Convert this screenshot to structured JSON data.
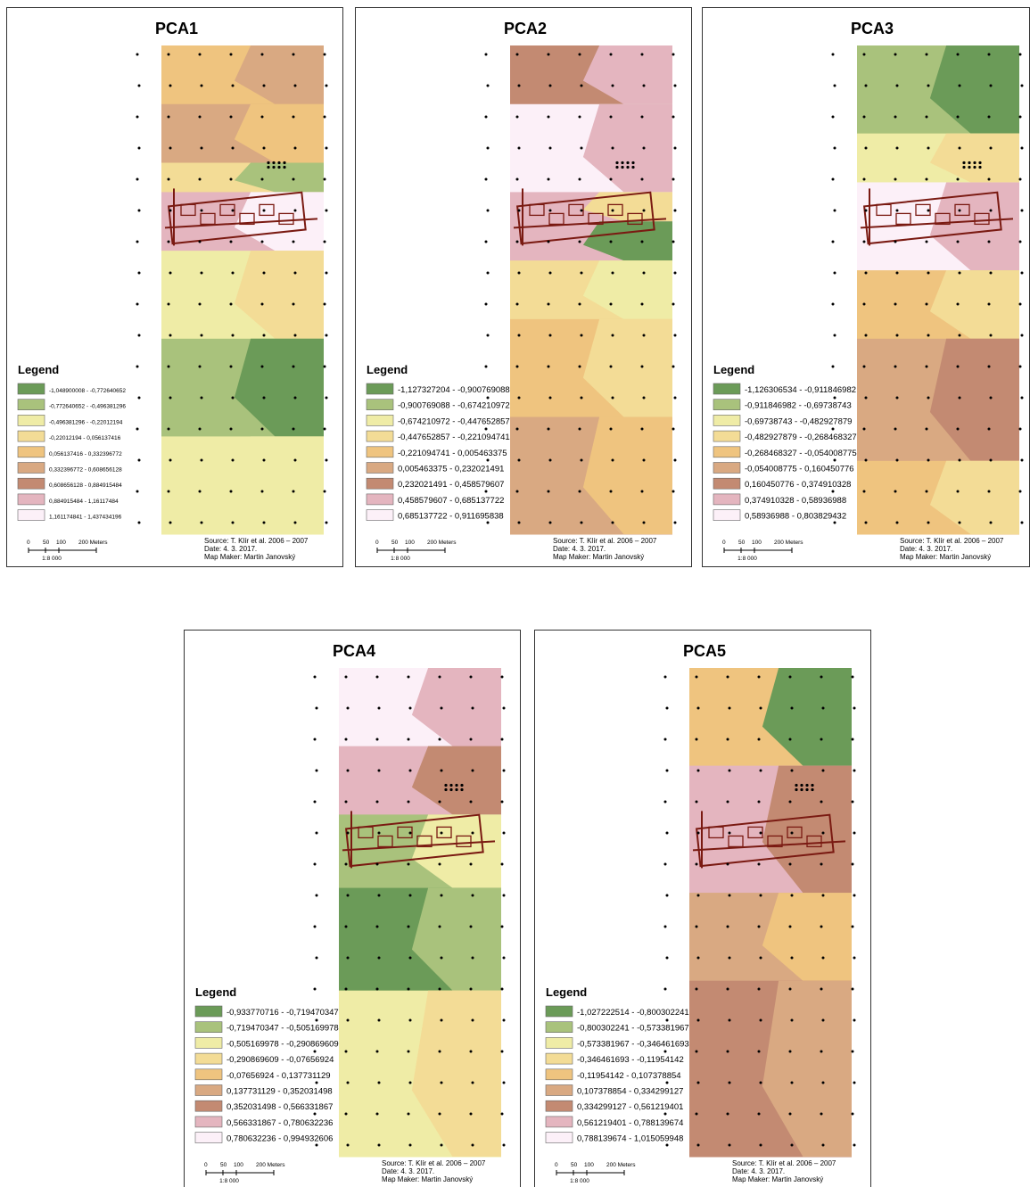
{
  "colors": [
    "#6b9b58",
    "#a9c27c",
    "#efeca6",
    "#f3dc96",
    "#efc47f",
    "#d9a982",
    "#c38a72",
    "#e4b5bf",
    "#fcf0f8"
  ],
  "panels": [
    {
      "title": "PCA1",
      "legend_title": "Legend",
      "legend": [
        "-1,048900008 - -0,772640652",
        "-0,772640652 - -0,496381296",
        "-0,496381296 - -0,22012194",
        "-0,22012194 - 0,056137416",
        "0,056137416 - 0,332396772",
        "0,332396772 - 0,608656128",
        "0,608656128 - 0,884915484",
        "0,884915484 - 1,16117484",
        "1,161174841 - 1,437434196"
      ],
      "scale": {
        "labels": [
          "0",
          "50",
          "100",
          "200 Meters"
        ],
        "ratio": "1:8 000"
      },
      "source": "Source: T. Klír et al. 2006 – 2007",
      "date": "Date: 4. 3. 2017.",
      "map_maker": "Map Maker: Martin Janovský"
    },
    {
      "title": "PCA2",
      "legend_title": "Legend",
      "legend": [
        "-1,127327204 - -0,900769088",
        "-0,900769088 - -0,674210972",
        "-0,674210972 - -0,447652857",
        "-0,447652857 - -0,221094741",
        "-0,221094741 - 0,005463375",
        "0,005463375 - 0,232021491",
        "0,232021491 - 0,458579607",
        "0,458579607 - 0,685137722",
        "0,685137722 - 0,911695838"
      ],
      "scale": {
        "labels": [
          "0",
          "50",
          "100",
          "200 Meters"
        ],
        "ratio": "1:8 000"
      },
      "source": "Source: T. Klír et al. 2006 – 2007",
      "date": "Date: 4. 3. 2017.",
      "map_maker": "Map Maker: Martin Janovský"
    },
    {
      "title": "PCA3",
      "legend_title": "Legend",
      "legend": [
        "-1,126306534 - -0,911846982",
        "-0,911846982 - -0,69738743",
        "-0,69738743 - -0,482927879",
        "-0,482927879 - -0,268468327",
        "-0,268468327 - -0,054008775",
        "-0,054008775 - 0,160450776",
        "0,160450776 - 0,374910328",
        "0,374910328 - 0,58936988",
        "0,58936988 - 0,803829432"
      ],
      "scale": {
        "labels": [
          "0",
          "50",
          "100",
          "200 Meters"
        ],
        "ratio": "1:8 000"
      },
      "source": "Source: T. Klír et al. 2006 – 2007",
      "date": "Date: 4. 3. 2017.",
      "map_maker": "Map Maker: Martin Janovský"
    },
    {
      "title": "PCA4",
      "legend_title": "Legend",
      "legend": [
        "-0,933770716 - -0,719470347",
        "-0,719470347 - -0,505169978",
        "-0,505169978 - -0,290869609",
        "-0,290869609 - -0,07656924",
        "-0,07656924 - 0,137731129",
        "0,137731129 - 0,352031498",
        "0,352031498 - 0,566331867",
        "0,566331867 - 0,780632236",
        "0,780632236 - 0,994932606"
      ],
      "scale": {
        "labels": [
          "0",
          "50",
          "100",
          "200 Meters"
        ],
        "ratio": "1:8 000"
      },
      "source": "Source: T. Klír et al. 2006 – 2007",
      "date": "Date: 4. 3. 2017.",
      "map_maker": "Map Maker: Martin Janovský"
    },
    {
      "title": "PCA5",
      "legend_title": "Legend",
      "legend": [
        "-1,027222514 - -0,800302241",
        "-0,800302241 - -0,573381967",
        "-0,573381967 - -0,346461693",
        "-0,346461693 - -0,11954142",
        "-0,11954142 - 0,107378854",
        "0,107378854 - 0,334299127",
        "0,334299127 - 0,561219401",
        "0,561219401 - 0,788139674",
        "0,788139674 - 1,015059948"
      ],
      "scale": {
        "labels": [
          "0",
          "50",
          "100",
          "200 Meters"
        ],
        "ratio": "1:8 000"
      },
      "source": "Source: T. Klír et al. 2006 – 2007",
      "date": "Date: 4. 3. 2017.",
      "map_maker": "Map Maker: Martin Janovský"
    }
  ]
}
